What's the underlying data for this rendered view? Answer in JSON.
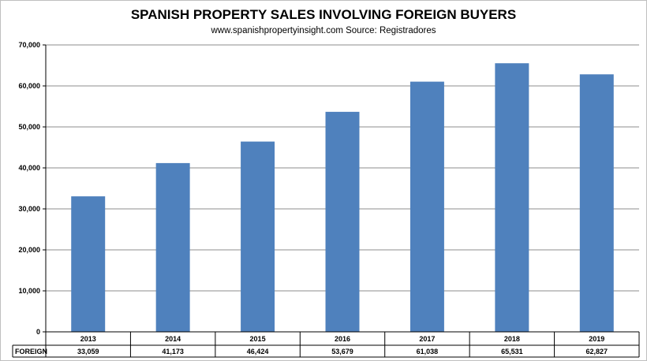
{
  "chart_data": {
    "type": "bar",
    "title": "SPANISH PROPERTY SALES INVOLVING FOREIGN BUYERS",
    "subtitle": "www.spanishpropertyinsight.com Source: Registradores",
    "categories": [
      "2013",
      "2014",
      "2015",
      "2016",
      "2017",
      "2018",
      "2019"
    ],
    "series": [
      {
        "name": "FOREIGN",
        "values": [
          33059,
          41173,
          46424,
          53679,
          61038,
          65531,
          62827
        ],
        "labels": [
          "33,059",
          "41,173",
          "46,424",
          "53,679",
          "61,038",
          "65,531",
          "62,827"
        ],
        "color": "#4f81bd"
      }
    ],
    "ylim": [
      0,
      70000
    ],
    "yticks": [
      0,
      10000,
      20000,
      30000,
      40000,
      50000,
      60000,
      70000
    ],
    "ytick_labels": [
      "0",
      "10,000",
      "20,000",
      "30,000",
      "40,000",
      "50,000",
      "60,000",
      "70,000"
    ],
    "grid": true,
    "data_table": true
  }
}
